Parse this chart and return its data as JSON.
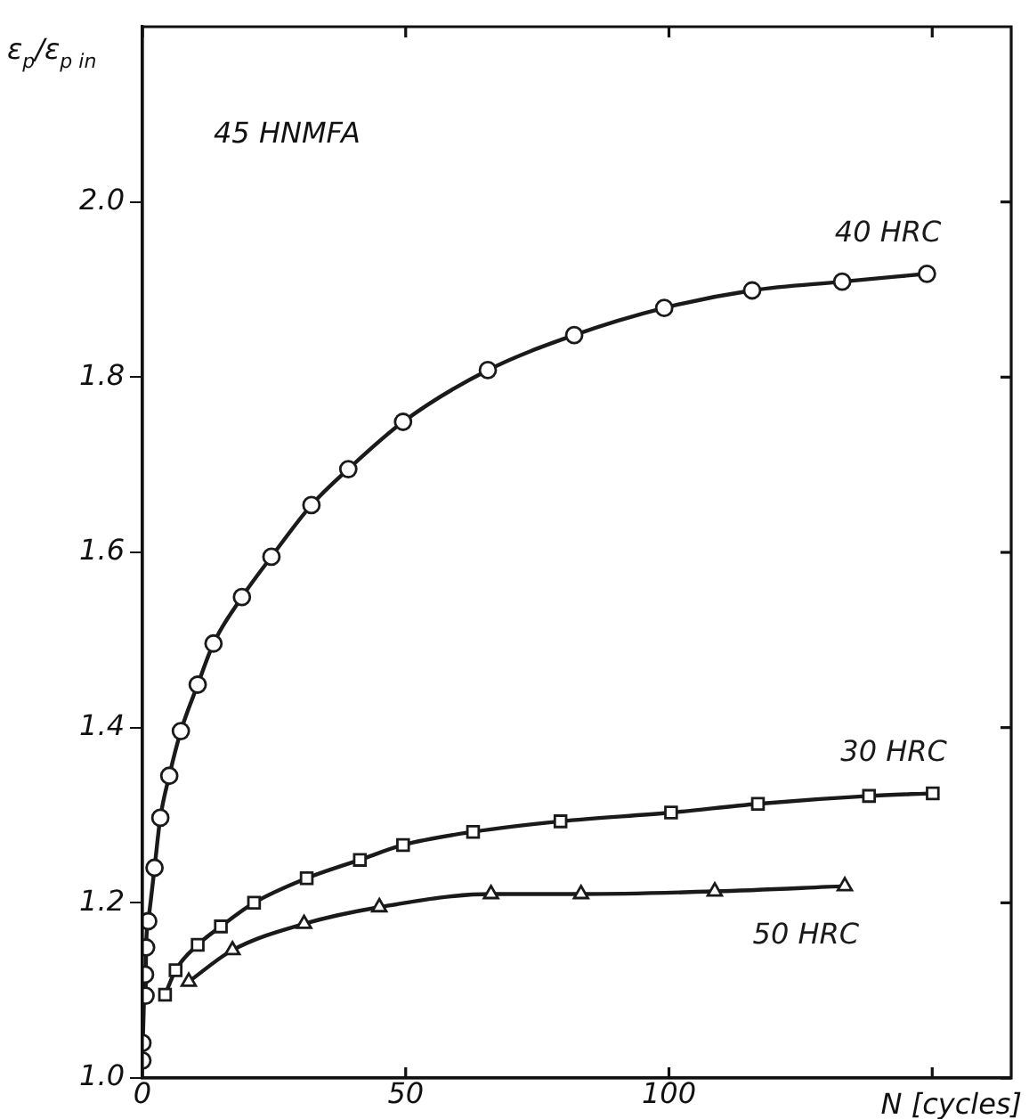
{
  "chart_data": {
    "type": "line",
    "annotations": [
      "45 HNMFA"
    ],
    "xlabel": "N [cycles]",
    "ylabel": "ε$_{p}$/ε$_{p in}$",
    "xlim": [
      0,
      165
    ],
    "ylim": [
      1.0,
      2.2
    ],
    "xticks": [
      0,
      50,
      100,
      {
        "value": 150,
        "label": null
      }
    ],
    "yticks": [
      {
        "value": 1.0,
        "label": "1.0"
      },
      1.2,
      1.4,
      1.6,
      1.8,
      {
        "value": 2.0,
        "label": "2.0"
      }
    ],
    "grid": false,
    "legend": false,
    "line_style": "solid",
    "series": [
      {
        "name": "40 HRC",
        "color": "#1a1a1a",
        "marker": "circle",
        "x": [
          0,
          0,
          0.5,
          0.6,
          0.7,
          1.1,
          2.3,
          3.4,
          5.1,
          7.3,
          10.5,
          13.5,
          18.9,
          24.5,
          32.1,
          39.1,
          49.5,
          65.6,
          82.0,
          99.1,
          115.8,
          132.9,
          149
        ],
        "values": [
          1.02,
          1.04,
          1.118,
          1.094,
          1.149,
          1.179,
          1.24,
          1.297,
          1.345,
          1.396,
          1.449,
          1.496,
          1.549,
          1.595,
          1.654,
          1.695,
          1.749,
          1.808,
          1.848,
          1.879,
          1.899,
          1.909,
          1.918
        ]
      },
      {
        "name": "30 HRC",
        "color": "#1a1a1a",
        "marker": "square",
        "x": [
          4.3,
          6.3,
          10.5,
          14.9,
          21.2,
          31.2,
          41.3,
          49.5,
          62.8,
          79.4,
          100.4,
          116.9,
          138.0,
          150.1
        ],
        "values": [
          1.095,
          1.123,
          1.152,
          1.173,
          1.2,
          1.228,
          1.249,
          1.266,
          1.281,
          1.293,
          1.303,
          1.313,
          1.322,
          1.325
        ]
      },
      {
        "name": "50 HRC",
        "color": "#1a1a1a",
        "marker": "triangle",
        "x": [
          8.8,
          17.1,
          30.7,
          45.0,
          66.2,
          83.3,
          108.7,
          133.4
        ],
        "values": [
          1.11,
          1.146,
          1.176,
          1.195,
          1.21,
          1.21,
          1.213,
          1.219
        ]
      }
    ]
  }
}
